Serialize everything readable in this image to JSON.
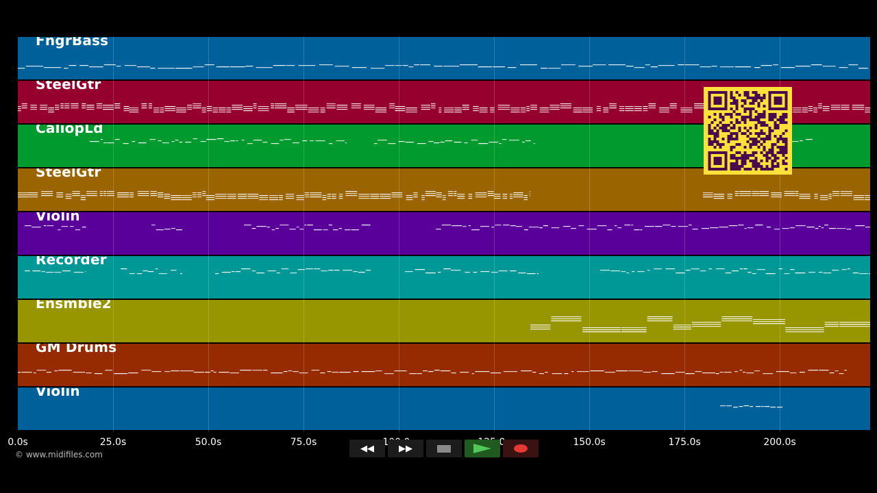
{
  "tracks": [
    {
      "name": "FngrBass",
      "color": "#00619a"
    },
    {
      "name": "SteelGtr",
      "color": "#96002f"
    },
    {
      "name": "CaliopLd",
      "color": "#009a2e"
    },
    {
      "name": "SteelGtr",
      "color": "#9a6400"
    },
    {
      "name": "Violin",
      "color": "#5a009a"
    },
    {
      "name": "Recorder",
      "color": "#009897"
    },
    {
      "name": "Ensmble2",
      "color": "#989600"
    },
    {
      "name": "GM Drums",
      "color": "#962a00"
    },
    {
      "name": "Violin",
      "color": "#00619a"
    }
  ],
  "timeline": {
    "ticks": [
      "0.0s",
      "25.0s",
      "50.0s",
      "75.0s",
      "100.0s",
      "125.0s",
      "150.0s",
      "175.0s",
      "200.0s"
    ]
  },
  "controls": {
    "rewind_icon": "rewind-icon",
    "forward_icon": "fast-forward-icon",
    "stop_icon": "stop-icon",
    "play_icon": "play-icon",
    "record_icon": "record-icon"
  },
  "copyright": "© www.midifiles.com",
  "qr_code": {
    "icon": "qr-code-icon",
    "color": "#fde13a"
  }
}
